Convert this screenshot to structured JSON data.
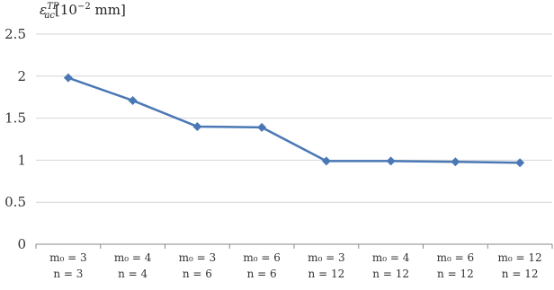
{
  "chart_data": {
    "type": "line",
    "ylabel": {
      "symbol": "ε",
      "superscript": "TP",
      "subscript": "ac",
      "unit_prefix": "[10",
      "unit_exponent": "−2",
      "unit_suffix": " mm]"
    },
    "ylim": [
      0,
      2.5
    ],
    "yticks": [
      "0",
      "0.5",
      "1",
      "1.5",
      "2",
      "2.5"
    ],
    "ytick_values": [
      0,
      0.5,
      1,
      1.5,
      2,
      2.5
    ],
    "grid": true,
    "categories": [
      {
        "line1": "m₀ = 3",
        "line2": "n = 3"
      },
      {
        "line1": "m₀ = 4",
        "line2": "n = 4"
      },
      {
        "line1": "m₀ = 3",
        "line2": "n = 6"
      },
      {
        "line1": "m₀ = 6",
        "line2": "n = 6"
      },
      {
        "line1": "m₀ = 3",
        "line2": "n = 12"
      },
      {
        "line1": "m₀ = 4",
        "line2": "n = 12"
      },
      {
        "line1": "m₀ = 6",
        "line2": "n = 12"
      },
      {
        "line1": "m₀ = 12",
        "line2": "n = 12"
      }
    ],
    "series": [
      {
        "values": [
          1.98,
          1.71,
          1.4,
          1.39,
          0.99,
          0.99,
          0.98,
          0.97
        ],
        "color": "#4a78b5",
        "marker": "diamond"
      }
    ]
  }
}
